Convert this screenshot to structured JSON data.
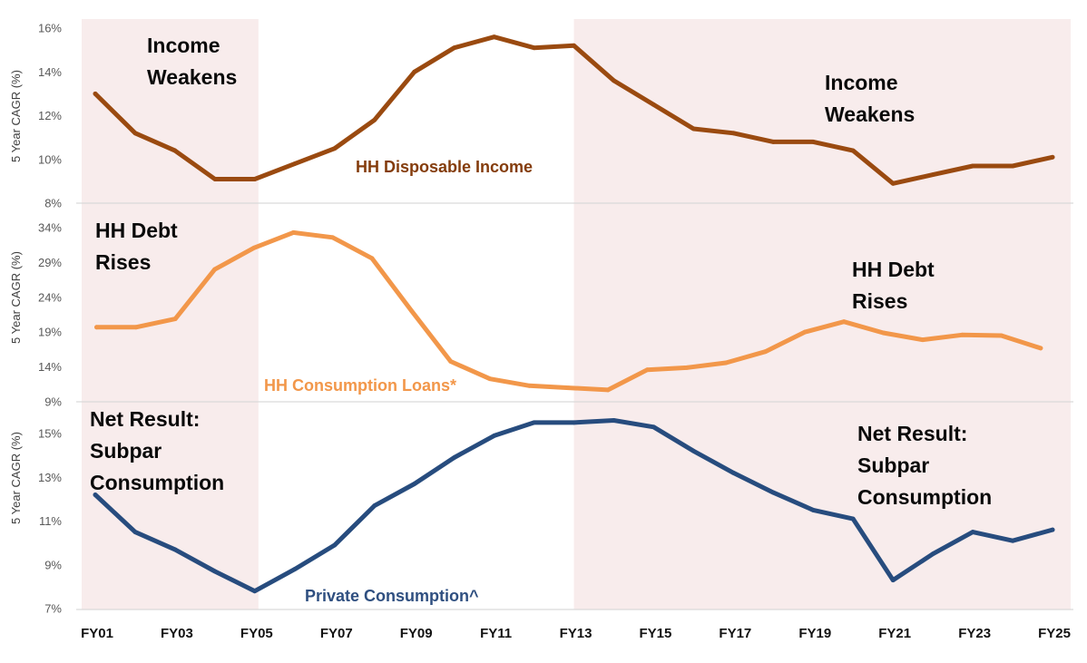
{
  "chart_data": {
    "type": "line",
    "title": "",
    "xlabel": "",
    "x": [
      "FY01",
      "FY02",
      "FY03",
      "FY04",
      "FY05",
      "FY06",
      "FY07",
      "FY08",
      "FY09",
      "FY10",
      "FY11",
      "FY12",
      "FY13",
      "FY14",
      "FY15",
      "FY16",
      "FY17",
      "FY18",
      "FY19",
      "FY20",
      "FY21",
      "FY22",
      "FY23",
      "FY24",
      "FY25"
    ],
    "xtick_labels": [
      "FY01",
      "FY03",
      "FY05",
      "FY07",
      "FY09",
      "FY11",
      "FY13",
      "FY15",
      "FY17",
      "FY19",
      "FY21",
      "FY23",
      "FY25"
    ],
    "shaded_ranges": [
      [
        "FY01",
        "FY05"
      ],
      [
        "FY13",
        "FY25"
      ]
    ],
    "shade_color": "#F8ECEC",
    "grid": "baseline only",
    "legend": "none (inline series labels)",
    "panels": [
      {
        "ylabel": "5 Year CAGR (%)",
        "ylim": [
          8,
          16
        ],
        "ytick_values": [
          8,
          10,
          12,
          14,
          16
        ],
        "ytick_labels": [
          "8%",
          "10%",
          "12%",
          "14%",
          "16%"
        ],
        "series": {
          "name": "HH Disposable Income",
          "color": "#9A4A10",
          "label_color": "#843C0C",
          "values": [
            13.0,
            11.2,
            10.4,
            9.1,
            9.1,
            9.8,
            10.5,
            11.8,
            14.0,
            15.1,
            15.6,
            15.1,
            15.2,
            13.6,
            12.5,
            11.4,
            11.2,
            10.8,
            10.8,
            10.4,
            8.9,
            9.3,
            9.7,
            9.7,
            10.1
          ]
        },
        "annotations": [
          {
            "lines": [
              "Income",
              "Weakens"
            ]
          },
          {
            "lines": [
              "Income",
              "Weakens"
            ]
          }
        ]
      },
      {
        "ylabel": "5 Year CAGR (%)",
        "ylim": [
          9,
          34
        ],
        "ytick_values": [
          9,
          14,
          19,
          24,
          29,
          34
        ],
        "ytick_labels": [
          "9%",
          "14%",
          "19%",
          "24%",
          "29%",
          "34%"
        ],
        "series": {
          "name": "HH Consumption Loans*",
          "color": "#F2974A",
          "label_color": "#F2974A",
          "values": [
            19.7,
            19.7,
            20.9,
            28.0,
            31.1,
            33.3,
            32.6,
            29.6,
            22.1,
            14.8,
            12.3,
            11.3,
            11.0,
            10.7,
            13.6,
            13.9,
            14.6,
            16.2,
            19.0,
            20.5,
            18.9,
            17.9,
            18.6,
            18.5,
            16.7
          ]
        },
        "annotations": [
          {
            "lines": [
              "HH Debt",
              "Rises"
            ]
          },
          {
            "lines": [
              "HH Debt",
              "Rises"
            ]
          }
        ]
      },
      {
        "ylabel": "5 Year CAGR (%)",
        "ylim": [
          7,
          15
        ],
        "ytick_values": [
          7,
          9,
          11,
          13,
          15
        ],
        "ytick_labels": [
          "7%",
          "9%",
          "11%",
          "13%",
          "15%"
        ],
        "series": {
          "name": "Private Consumption^",
          "color": "#274C7E",
          "label_color": "#2F4F80",
          "values": [
            12.2,
            10.5,
            9.7,
            8.7,
            7.8,
            8.8,
            9.9,
            11.7,
            12.7,
            13.9,
            14.9,
            15.5,
            15.5,
            15.6,
            15.3,
            14.2,
            13.2,
            12.3,
            11.5,
            11.1,
            8.3,
            9.5,
            10.5,
            10.1,
            10.6
          ]
        },
        "annotations": [
          {
            "lines": [
              "Net Result:",
              "Subpar",
              "Consumption"
            ]
          },
          {
            "lines": [
              "Net Result:",
              "Subpar",
              "Consumption"
            ]
          }
        ]
      }
    ]
  }
}
